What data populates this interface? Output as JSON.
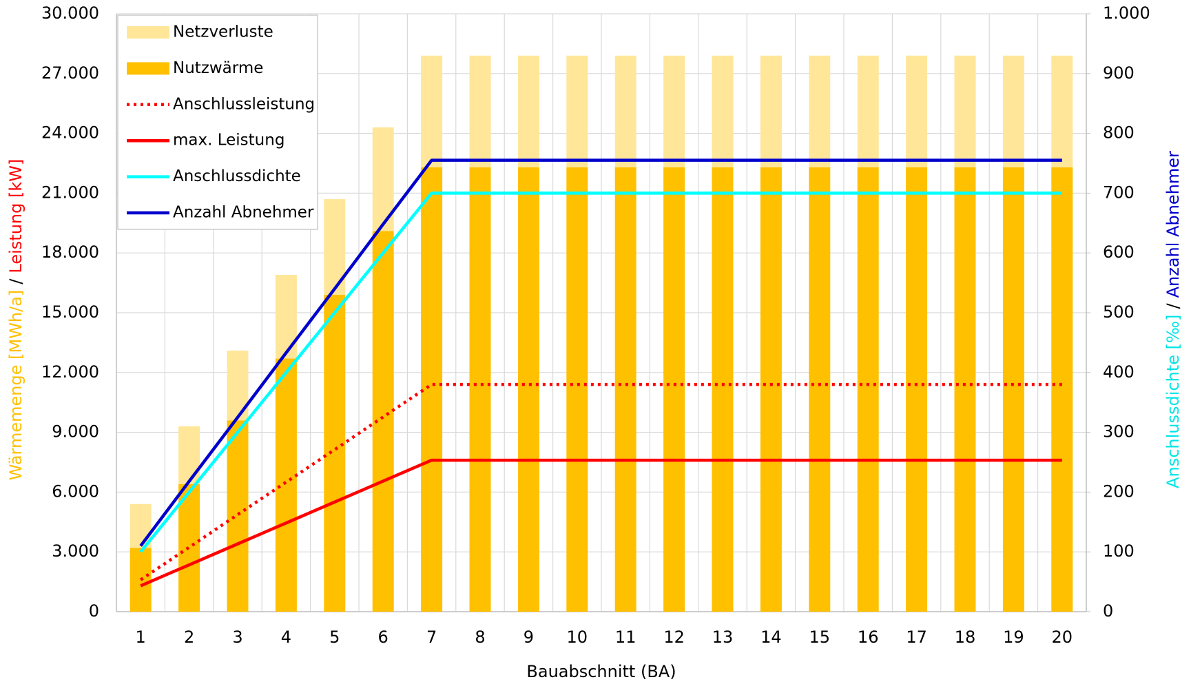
{
  "chart_data": {
    "type": "bar",
    "xlabel": "Bauabschnitt (BA)",
    "ylabel": [
      "Wärmemenge [MWh/a]",
      "/",
      "Leistung [kW]"
    ],
    "ylabel_colors": [
      "#ffc000",
      "#000000",
      "#ff0000"
    ],
    "y2label": [
      "Anschlussdichte [‰]",
      "/",
      "Anzahl Abnehmer"
    ],
    "y2label_colors": [
      "#00e5e5",
      "#000000",
      "#0000cc"
    ],
    "categories": [
      1,
      2,
      3,
      4,
      5,
      6,
      7,
      8,
      9,
      10,
      11,
      12,
      13,
      14,
      15,
      16,
      17,
      18,
      19,
      20
    ],
    "series": [
      {
        "name": "Netzverluste",
        "type": "bar",
        "color": "#ffe699",
        "values": [
          2200,
          2900,
          3500,
          4200,
          4800,
          5200,
          5600,
          5600,
          5600,
          5600,
          5600,
          5600,
          5600,
          5600,
          5600,
          5600,
          5600,
          5600,
          5600,
          5600
        ]
      },
      {
        "name": "Nutzwärme",
        "type": "bar",
        "color": "#ffc000",
        "values": [
          3200,
          6400,
          9600,
          12700,
          15900,
          19100,
          22300,
          22300,
          22300,
          22300,
          22300,
          22300,
          22300,
          22300,
          22300,
          22300,
          22300,
          22300,
          22300,
          22300
        ]
      },
      {
        "name": "Anschlussleistung",
        "type": "line",
        "dash": "dotted",
        "color": "#ff0000",
        "values": [
          1600,
          3230,
          4870,
          6500,
          8130,
          9770,
          11400,
          11400,
          11400,
          11400,
          11400,
          11400,
          11400,
          11400,
          11400,
          11400,
          11400,
          11400,
          11400,
          11400
        ]
      },
      {
        "name": "max. Leistung",
        "type": "line",
        "color": "#ff0000",
        "values": [
          1300,
          2350,
          3400,
          4450,
          5500,
          6550,
          7600,
          7600,
          7600,
          7600,
          7600,
          7600,
          7600,
          7600,
          7600,
          7600,
          7600,
          7600,
          7600,
          7600
        ]
      },
      {
        "name": "Anschlussdichte",
        "type": "line",
        "axis": "y2",
        "color": "#00ffff",
        "values": [
          100,
          200,
          300,
          400,
          500,
          600,
          700,
          700,
          700,
          700,
          700,
          700,
          700,
          700,
          700,
          700,
          700,
          700,
          700,
          700
        ]
      },
      {
        "name": "Anzahl Abnehmer",
        "type": "line",
        "axis": "y2",
        "color": "#0000cc",
        "values": [
          110,
          218,
          325,
          433,
          540,
          648,
          755,
          755,
          755,
          755,
          755,
          755,
          755,
          755,
          755,
          755,
          755,
          755,
          755,
          755
        ]
      }
    ],
    "ylim": [
      0,
      30000
    ],
    "yticks": [
      0,
      {
        "value": 3000,
        "label": "3.000"
      },
      {
        "value": 6000,
        "label": "6.000"
      },
      {
        "value": 9000,
        "label": "9.000"
      },
      {
        "value": 12000,
        "label": "12.000"
      },
      {
        "value": 15000,
        "label": "15.000"
      },
      {
        "value": 18000,
        "label": "18.000"
      },
      {
        "value": 21000,
        "label": "21.000"
      },
      {
        "value": 24000,
        "label": "24.000"
      },
      {
        "value": 27000,
        "label": "27.000"
      },
      {
        "value": 30000,
        "label": "30.000"
      }
    ],
    "y2lim": [
      0,
      1000
    ],
    "y2ticks": [
      0,
      100,
      200,
      300,
      400,
      500,
      600,
      700,
      800,
      900,
      {
        "value": 1000,
        "label": "1.000"
      }
    ],
    "grid": true,
    "legend": "upper left"
  }
}
